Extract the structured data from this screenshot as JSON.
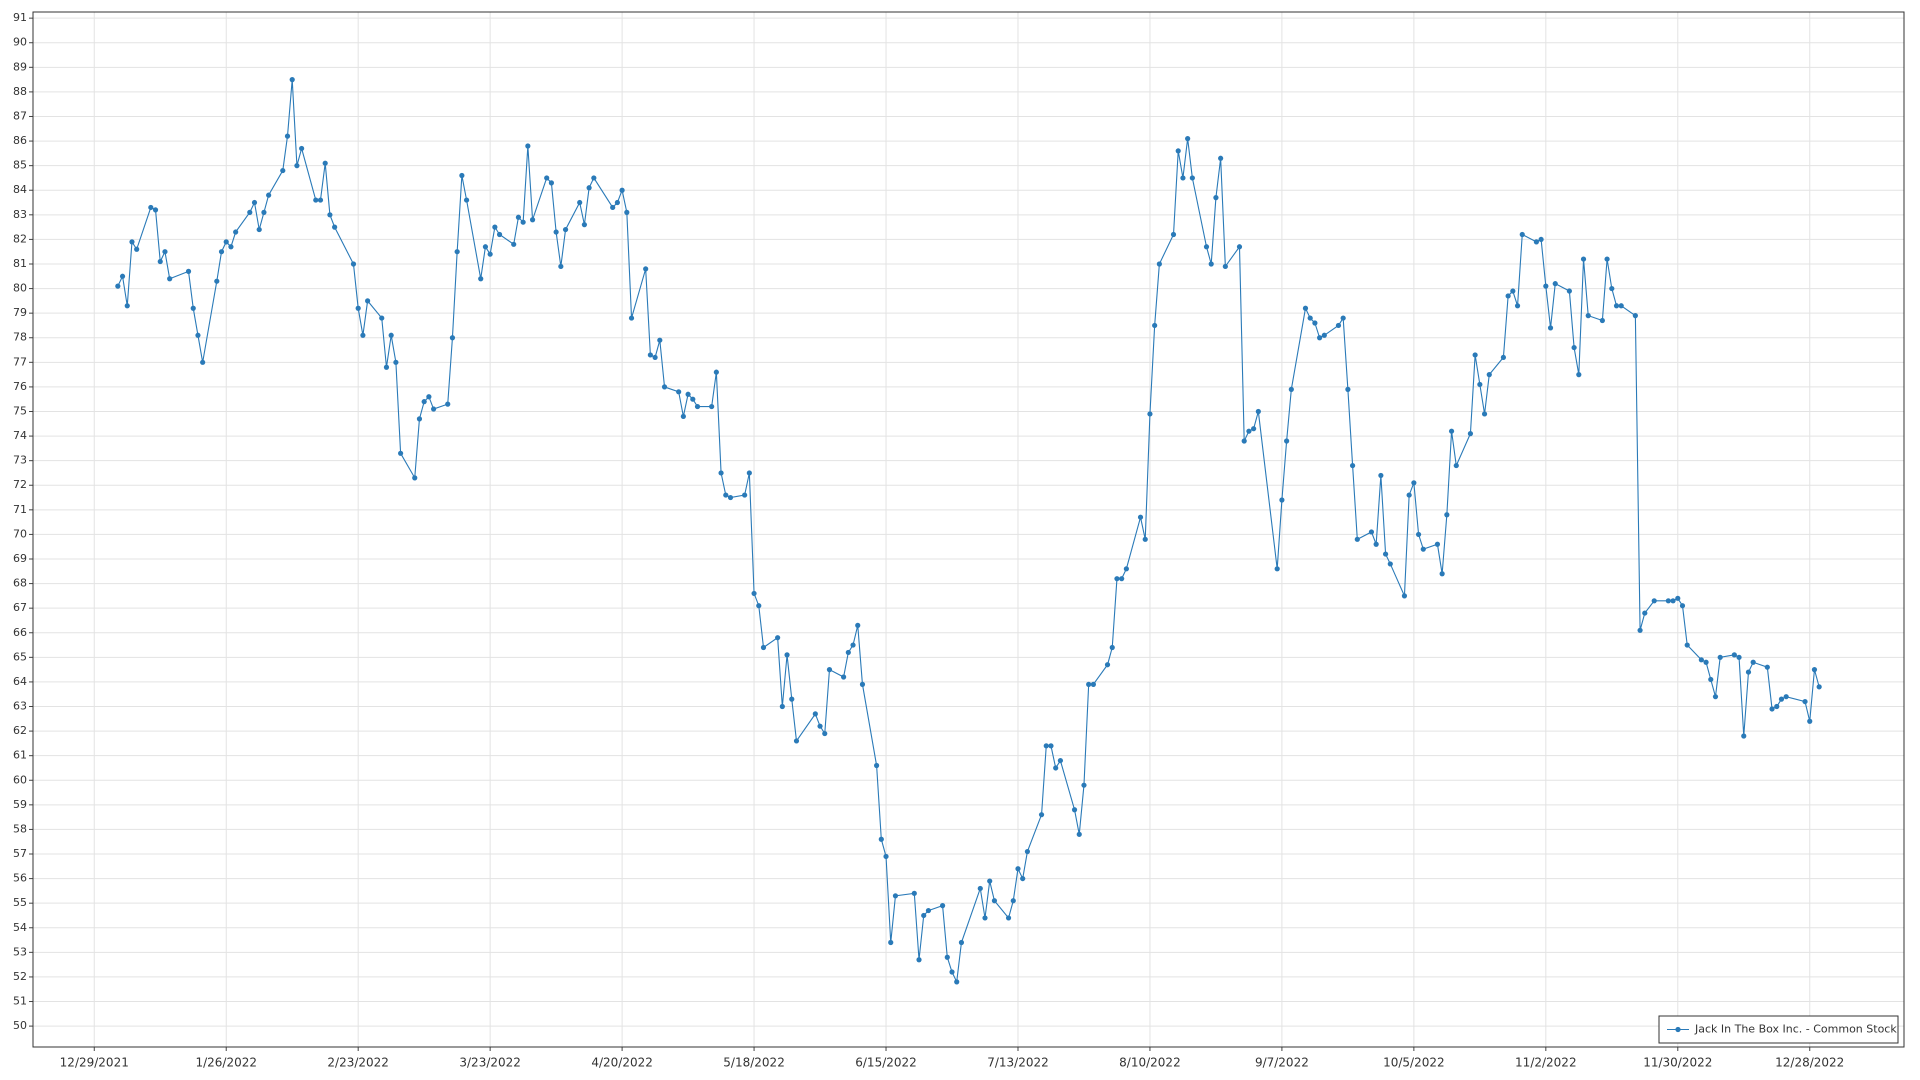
{
  "chart_data": {
    "type": "line",
    "grid": true,
    "legend": "bottom-right",
    "x": [
      "1/3/2022",
      "1/4/2022",
      "1/5/2022",
      "1/6/2022",
      "1/7/2022",
      "1/10/2022",
      "1/11/2022",
      "1/12/2022",
      "1/13/2022",
      "1/14/2022",
      "1/18/2022",
      "1/19/2022",
      "1/20/2022",
      "1/21/2022",
      "1/24/2022",
      "1/25/2022",
      "1/26/2022",
      "1/27/2022",
      "1/28/2022",
      "1/31/2022",
      "2/1/2022",
      "2/2/2022",
      "2/3/2022",
      "2/4/2022",
      "2/7/2022",
      "2/8/2022",
      "2/9/2022",
      "2/10/2022",
      "2/11/2022",
      "2/14/2022",
      "2/15/2022",
      "2/16/2022",
      "2/17/2022",
      "2/18/2022",
      "2/22/2022",
      "2/23/2022",
      "2/24/2022",
      "2/25/2022",
      "2/28/2022",
      "3/1/2022",
      "3/2/2022",
      "3/3/2022",
      "3/4/2022",
      "3/7/2022",
      "3/8/2022",
      "3/9/2022",
      "3/10/2022",
      "3/11/2022",
      "3/14/2022",
      "3/15/2022",
      "3/16/2022",
      "3/17/2022",
      "3/18/2022",
      "3/21/2022",
      "3/22/2022",
      "3/23/2022",
      "3/24/2022",
      "3/25/2022",
      "3/28/2022",
      "3/29/2022",
      "3/30/2022",
      "3/31/2022",
      "4/1/2022",
      "4/4/2022",
      "4/5/2022",
      "4/6/2022",
      "4/7/2022",
      "4/8/2022",
      "4/11/2022",
      "4/12/2022",
      "4/13/2022",
      "4/14/2022",
      "4/18/2022",
      "4/19/2022",
      "4/20/2022",
      "4/21/2022",
      "4/22/2022",
      "4/25/2022",
      "4/26/2022",
      "4/27/2022",
      "4/28/2022",
      "4/29/2022",
      "5/2/2022",
      "5/3/2022",
      "5/4/2022",
      "5/5/2022",
      "5/6/2022",
      "5/9/2022",
      "5/10/2022",
      "5/11/2022",
      "5/12/2022",
      "5/13/2022",
      "5/16/2022",
      "5/17/2022",
      "5/18/2022",
      "5/19/2022",
      "5/20/2022",
      "5/23/2022",
      "5/24/2022",
      "5/25/2022",
      "5/26/2022",
      "5/27/2022",
      "5/31/2022",
      "6/1/2022",
      "6/2/2022",
      "6/3/2022",
      "6/6/2022",
      "6/7/2022",
      "6/8/2022",
      "6/9/2022",
      "6/10/2022",
      "6/13/2022",
      "6/14/2022",
      "6/15/2022",
      "6/16/2022",
      "6/17/2022",
      "6/21/2022",
      "6/22/2022",
      "6/23/2022",
      "6/24/2022",
      "6/27/2022",
      "6/28/2022",
      "6/29/2022",
      "6/30/2022",
      "7/1/2022",
      "7/5/2022",
      "7/6/2022",
      "7/7/2022",
      "7/8/2022",
      "7/11/2022",
      "7/12/2022",
      "7/13/2022",
      "7/14/2022",
      "7/15/2022",
      "7/18/2022",
      "7/19/2022",
      "7/20/2022",
      "7/21/2022",
      "7/22/2022",
      "7/25/2022",
      "7/26/2022",
      "7/27/2022",
      "7/28/2022",
      "7/29/2022",
      "8/1/2022",
      "8/2/2022",
      "8/3/2022",
      "8/4/2022",
      "8/5/2022",
      "8/8/2022",
      "8/9/2022",
      "8/10/2022",
      "8/11/2022",
      "8/12/2022",
      "8/15/2022",
      "8/16/2022",
      "8/17/2022",
      "8/18/2022",
      "8/19/2022",
      "8/22/2022",
      "8/23/2022",
      "8/24/2022",
      "8/25/2022",
      "8/26/2022",
      "8/29/2022",
      "8/30/2022",
      "8/31/2022",
      "9/1/2022",
      "9/2/2022",
      "9/6/2022",
      "9/7/2022",
      "9/8/2022",
      "9/9/2022",
      "9/12/2022",
      "9/13/2022",
      "9/14/2022",
      "9/15/2022",
      "9/16/2022",
      "9/19/2022",
      "9/20/2022",
      "9/21/2022",
      "9/22/2022",
      "9/23/2022",
      "9/26/2022",
      "9/27/2022",
      "9/28/2022",
      "9/29/2022",
      "9/30/2022",
      "10/3/2022",
      "10/4/2022",
      "10/5/2022",
      "10/6/2022",
      "10/7/2022",
      "10/10/2022",
      "10/11/2022",
      "10/12/2022",
      "10/13/2022",
      "10/14/2022",
      "10/17/2022",
      "10/18/2022",
      "10/19/2022",
      "10/20/2022",
      "10/21/2022",
      "10/24/2022",
      "10/25/2022",
      "10/26/2022",
      "10/27/2022",
      "10/28/2022",
      "10/31/2022",
      "11/1/2022",
      "11/2/2022",
      "11/3/2022",
      "11/4/2022",
      "11/7/2022",
      "11/8/2022",
      "11/9/2022",
      "11/10/2022",
      "11/11/2022",
      "11/14/2022",
      "11/15/2022",
      "11/16/2022",
      "11/17/2022",
      "11/18/2022",
      "11/21/2022",
      "11/22/2022",
      "11/23/2022",
      "11/25/2022",
      "11/28/2022",
      "11/29/2022",
      "11/30/2022",
      "12/1/2022",
      "12/2/2022",
      "12/5/2022",
      "12/6/2022",
      "12/7/2022",
      "12/8/2022",
      "12/9/2022",
      "12/12/2022",
      "12/13/2022",
      "12/14/2022",
      "12/15/2022",
      "12/16/2022",
      "12/19/2022",
      "12/20/2022",
      "12/21/2022",
      "12/22/2022",
      "12/23/2022",
      "12/27/2022",
      "12/28/2022",
      "12/29/2022",
      "12/30/2022"
    ],
    "series": [
      {
        "name": "Jack In The Box Inc. - Common Stock",
        "color": "#2a7ab8",
        "values": [
          80.1,
          80.5,
          79.3,
          81.9,
          81.6,
          83.3,
          83.2,
          81.1,
          81.5,
          80.4,
          80.7,
          79.2,
          78.1,
          77.0,
          80.3,
          81.5,
          81.9,
          81.7,
          82.3,
          83.1,
          83.5,
          82.4,
          83.1,
          83.8,
          84.8,
          86.2,
          88.5,
          85.0,
          85.7,
          83.6,
          83.6,
          85.1,
          83.0,
          82.5,
          81.0,
          79.2,
          78.1,
          79.5,
          78.8,
          76.8,
          78.1,
          77.0,
          73.3,
          72.3,
          74.7,
          75.4,
          75.6,
          75.1,
          75.3,
          78.0,
          81.5,
          84.6,
          83.6,
          80.4,
          81.7,
          81.4,
          82.5,
          82.2,
          81.8,
          82.9,
          82.7,
          85.8,
          82.8,
          84.5,
          84.3,
          82.3,
          80.9,
          82.4,
          83.5,
          82.6,
          84.1,
          84.5,
          83.3,
          83.5,
          84.0,
          83.1,
          78.8,
          80.8,
          77.3,
          77.2,
          77.9,
          76.0,
          75.8,
          74.8,
          75.7,
          75.5,
          75.2,
          75.2,
          76.6,
          72.5,
          71.6,
          71.5,
          71.6,
          72.5,
          67.6,
          67.1,
          65.4,
          65.8,
          63.0,
          65.1,
          63.3,
          61.6,
          62.7,
          62.2,
          61.9,
          64.5,
          64.2,
          65.2,
          65.5,
          66.3,
          63.9,
          60.6,
          57.6,
          56.9,
          53.4,
          55.3,
          55.4,
          52.7,
          54.5,
          54.7,
          54.9,
          52.8,
          52.2,
          51.8,
          53.4,
          55.6,
          54.4,
          55.9,
          55.1,
          54.4,
          55.1,
          56.4,
          56.0,
          57.1,
          58.6,
          61.4,
          61.4,
          60.5,
          60.8,
          58.8,
          57.8,
          59.8,
          63.9,
          63.9,
          64.7,
          65.4,
          68.2,
          68.2,
          68.6,
          70.7,
          69.8,
          74.9,
          78.5,
          81.0,
          82.2,
          85.6,
          84.5,
          86.1,
          84.5,
          81.7,
          81.0,
          83.7,
          85.3,
          80.9,
          81.7,
          73.8,
          74.2,
          74.3,
          75.0,
          68.6,
          71.4,
          73.8,
          75.9,
          79.2,
          78.8,
          78.6,
          78.0,
          78.1,
          78.5,
          78.8,
          75.9,
          72.8,
          69.8,
          70.1,
          69.6,
          72.4,
          69.2,
          68.8,
          67.5,
          71.6,
          72.1,
          70.0,
          69.4,
          69.6,
          68.4,
          70.8,
          74.2,
          72.8,
          74.1,
          77.3,
          76.1,
          74.9,
          76.5,
          77.2,
          79.7,
          79.9,
          79.3,
          82.2,
          81.9,
          82.0,
          80.1,
          78.4,
          80.2,
          79.9,
          77.6,
          76.5,
          81.2,
          78.9,
          78.7,
          81.2,
          80.0,
          79.3,
          79.3,
          78.9,
          66.1,
          66.8,
          67.3,
          67.3,
          67.3,
          67.4,
          67.1,
          65.5,
          64.9,
          64.8,
          64.1,
          63.4,
          65.0,
          65.1,
          65.0,
          61.8,
          64.4,
          64.8,
          64.6,
          62.9,
          63.0,
          63.3,
          63.4,
          63.2,
          62.4,
          64.5,
          63.8
        ]
      }
    ],
    "xlim": [
      "12/16/2021",
      "1/17/2023"
    ],
    "xticks": [
      "12/29/2021",
      "1/26/2022",
      "2/23/2022",
      "3/23/2022",
      "4/20/2022",
      "5/18/2022",
      "6/15/2022",
      "7/13/2022",
      "8/10/2022",
      "9/7/2022",
      "10/5/2022",
      "11/2/2022",
      "11/30/2022",
      "12/28/2022"
    ],
    "ylim": [
      49.15,
      91.25
    ],
    "yticks": [
      50,
      51,
      52,
      53,
      54,
      55,
      56,
      57,
      58,
      59,
      60,
      61,
      62,
      63,
      64,
      65,
      66,
      67,
      68,
      69,
      70,
      71,
      72,
      73,
      74,
      75,
      76,
      77,
      78,
      79,
      80,
      81,
      82,
      83,
      84,
      85,
      86,
      87,
      88,
      89,
      90,
      91
    ]
  }
}
